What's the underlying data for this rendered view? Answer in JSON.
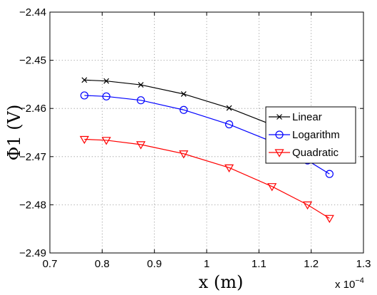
{
  "chart_data": {
    "type": "line",
    "xlabel": "x (m)",
    "ylabel": "Φ1 (V)",
    "x_scale_note": {
      "prefix": "x 10",
      "exponent": "−4"
    },
    "xlim": [
      0.7,
      1.3
    ],
    "ylim": [
      -2.49,
      -2.44
    ],
    "xticks": [
      0.7,
      0.8,
      0.9,
      1.0,
      1.1,
      1.2,
      1.3
    ],
    "xtick_labels": [
      "0.7",
      "0.8",
      "0.9",
      "1",
      "1.1",
      "1.2",
      "1.3"
    ],
    "yticks": [
      -2.49,
      -2.48,
      -2.47,
      -2.46,
      -2.45,
      -2.44
    ],
    "ytick_labels": [
      "−2.49",
      "−2.48",
      "−2.47",
      "−2.46",
      "−2.45",
      "−2.44"
    ],
    "grid": true,
    "legend_position": "right",
    "x": [
      0.766,
      0.808,
      0.874,
      0.956,
      1.043,
      1.125,
      1.193,
      1.235
    ],
    "series": [
      {
        "name": "Linear",
        "color": "#000000",
        "marker": "x",
        "values": [
          -2.4541,
          -2.4543,
          -2.4551,
          -2.457,
          -2.4599,
          -2.4634,
          -2.467,
          -2.4701
        ]
      },
      {
        "name": "Logarithm",
        "color": "#0000ff",
        "marker": "circle",
        "values": [
          -2.4573,
          -2.4575,
          -2.4583,
          -2.4603,
          -2.4633,
          -2.4669,
          -2.4708,
          -2.4736
        ]
      },
      {
        "name": "Quadratic",
        "color": "#ff0000",
        "marker": "triangle-down",
        "values": [
          -2.4664,
          -2.4666,
          -2.4675,
          -2.4694,
          -2.4723,
          -2.4762,
          -2.48,
          -2.4828
        ]
      }
    ]
  }
}
